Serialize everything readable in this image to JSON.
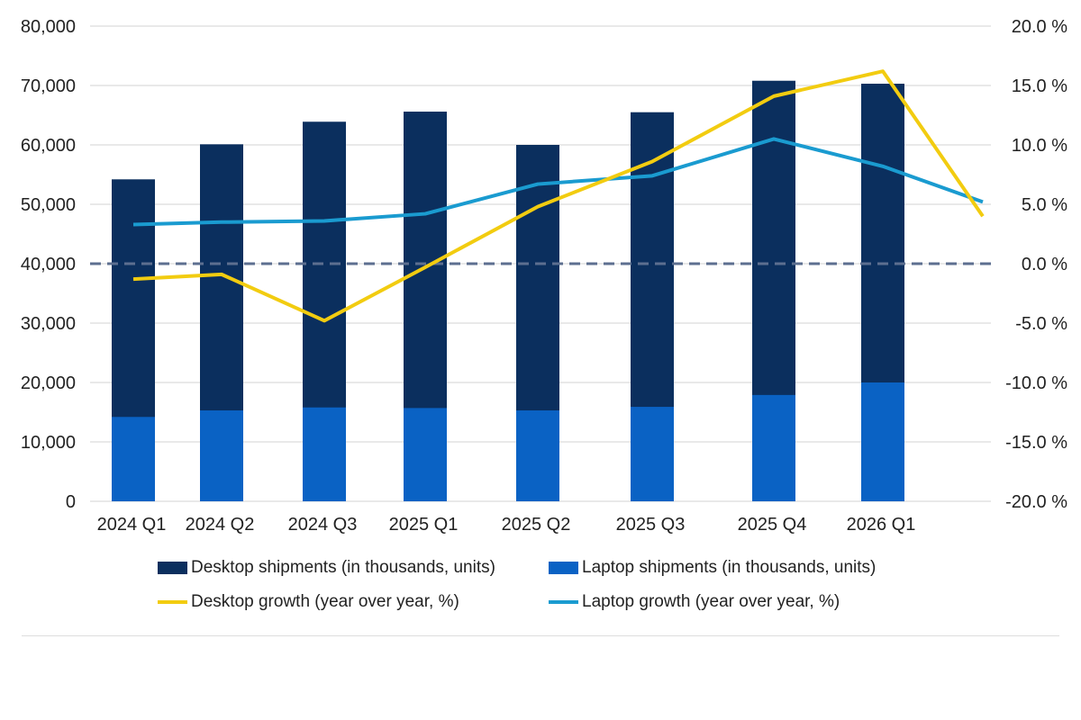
{
  "chart_data": {
    "type": "bar",
    "categories": [
      "2024 Q1",
      "2024 Q2",
      "2024 Q3",
      "2025 Q1",
      "2025 Q2",
      "2025 Q3",
      "2025 Q4",
      "2026 Q1",
      ""
    ],
    "bar_series": [
      {
        "name": "Desktop shipments (in thousands, units)",
        "color": "#0b2f5e",
        "values": [
          54200,
          60100,
          63900,
          65600,
          60000,
          65500,
          70800,
          70300,
          null
        ]
      },
      {
        "name": "Laptop shipments (in thousands, units)",
        "color": "#0a62c4",
        "values": [
          14200,
          15300,
          15800,
          15700,
          15300,
          15900,
          17900,
          20000,
          null
        ]
      }
    ],
    "line_series": [
      {
        "name": "Desktop growth (year over year, %)",
        "color": "#f2cc10",
        "axis": "right",
        "values": [
          -1.3,
          -0.9,
          -4.8,
          -0.3,
          4.8,
          8.6,
          14.1,
          16.2,
          4.0
        ]
      },
      {
        "name": "Laptop growth (year over year, %)",
        "color": "#1a9bd0",
        "axis": "right",
        "values": [
          3.3,
          3.5,
          3.6,
          4.2,
          6.7,
          7.4,
          10.5,
          8.2,
          5.2
        ]
      }
    ],
    "reference_line": {
      "axis": "right",
      "value": 0,
      "style": "dashed",
      "color": "#5d6f90"
    },
    "left_axis": {
      "ylim": [
        0,
        80000
      ],
      "ticks": [
        "0",
        "10,000",
        "20,000",
        "30,000",
        "40,000",
        "50,000",
        "60,000",
        "70,000",
        "80,000"
      ]
    },
    "right_axis": {
      "ylim": [
        -20,
        20
      ],
      "ticks": [
        "-20.0 %",
        "-15.0 %",
        "-10.0 %",
        "-5.0 %",
        "0.0 %",
        "5.0 %",
        "10.0 %",
        "15.0 %",
        "20.0 %"
      ]
    },
    "grid": true,
    "legend_position": "bottom"
  }
}
